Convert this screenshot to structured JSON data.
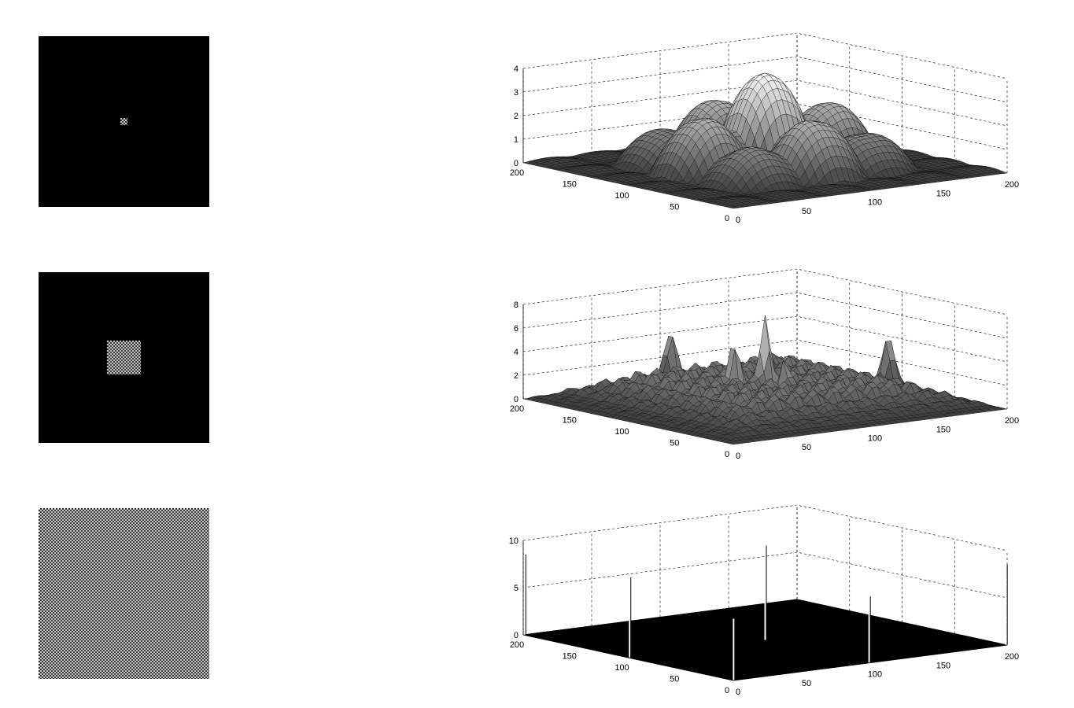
{
  "images": [
    {
      "pattern": "small-checker-patch",
      "patch_size_px": 9,
      "background": "#000000"
    },
    {
      "pattern": "medium-checker-patch",
      "patch_size_px": 43,
      "background": "#000000"
    },
    {
      "pattern": "full-checkerboard",
      "background": "#ffffff"
    }
  ],
  "chart_data": [
    {
      "type": "surface",
      "x_ticks": [
        "0",
        "50",
        "100",
        "150",
        "200"
      ],
      "y_ticks": [
        "0",
        "50",
        "100",
        "150",
        "200"
      ],
      "z_ticks": [
        "0",
        "1",
        "2",
        "3",
        "4"
      ],
      "xlim": [
        0,
        200
      ],
      "ylim": [
        0,
        200
      ],
      "zlim": [
        0,
        4
      ],
      "grid": true,
      "shape": "broad overlapping lobes",
      "peak": {
        "x": 100,
        "y": 100,
        "z": 4
      },
      "lobes": [
        {
          "x": 100,
          "y": 100,
          "z": 4
        },
        {
          "x": 100,
          "y": 55,
          "z": 2.4
        },
        {
          "x": 100,
          "y": 145,
          "z": 2.4
        },
        {
          "x": 55,
          "y": 100,
          "z": 2.4
        },
        {
          "x": 145,
          "y": 100,
          "z": 2.4
        },
        {
          "x": 60,
          "y": 60,
          "z": 1.5
        },
        {
          "x": 140,
          "y": 60,
          "z": 1.5
        },
        {
          "x": 60,
          "y": 140,
          "z": 1.5
        },
        {
          "x": 140,
          "y": 140,
          "z": 1.5
        }
      ]
    },
    {
      "type": "surface",
      "x_ticks": [
        "0",
        "50",
        "100",
        "150",
        "200"
      ],
      "y_ticks": [
        "0",
        "50",
        "100",
        "150",
        "200"
      ],
      "z_ticks": [
        "0",
        "2",
        "4",
        "6",
        "8"
      ],
      "xlim": [
        0,
        200
      ],
      "ylim": [
        0,
        200
      ],
      "zlim": [
        0,
        8
      ],
      "grid": true,
      "shape": "rippled plateau with sharp peaks",
      "peak": {
        "x": 100,
        "y": 100,
        "z": 7.5
      },
      "peaks": [
        {
          "x": 100,
          "y": 100,
          "z": 7.5
        },
        {
          "x": 100,
          "y": 190,
          "z": 4.5
        },
        {
          "x": 190,
          "y": 100,
          "z": 4.5
        },
        {
          "x": 85,
          "y": 110,
          "z": 5.5
        },
        {
          "x": 105,
          "y": 88,
          "z": 4
        }
      ]
    },
    {
      "type": "surface",
      "x_ticks": [
        "0",
        "50",
        "100",
        "150",
        "200"
      ],
      "y_ticks": [
        "0",
        "50",
        "100",
        "150",
        "200"
      ],
      "z_ticks": [
        "0",
        "5",
        "10"
      ],
      "xlim": [
        0,
        200
      ],
      "ylim": [
        0,
        200
      ],
      "zlim": [
        0,
        10
      ],
      "grid": true,
      "shape": "flat plane with isolated spikes",
      "spikes": [
        {
          "x": 1,
          "y": 200,
          "z": 8.5
        },
        {
          "x": 200,
          "y": 1,
          "z": 8.5
        },
        {
          "x": 100,
          "y": 100,
          "z": 10
        },
        {
          "x": 1,
          "y": 1,
          "z": 6.5
        },
        {
          "x": 100,
          "y": 1,
          "z": 7
        },
        {
          "x": 1,
          "y": 100,
          "z": 8.5
        }
      ]
    }
  ]
}
